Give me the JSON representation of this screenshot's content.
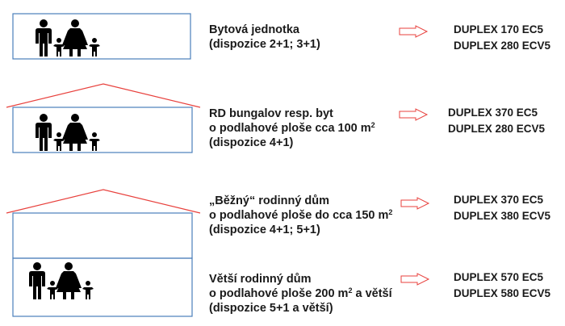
{
  "rows": [
    {
      "lines": [
        "Bytová jednotka",
        "(dispozice  2+1;  3+1)"
      ],
      "results": [
        "DUPLEX 170 EC5",
        "DUPLEX 280 ECV5"
      ]
    },
    {
      "lines": [
        "RD bungalov  resp. byt",
        "o podlahové  ploše cca 100 m",
        "(dispozice 4+1)"
      ],
      "sup": "2",
      "results": [
        "DUPLEX 370 EC5",
        "DUPLEX 280 ECV5"
      ]
    },
    {
      "lines": [
        "„Běžný“ rodinný dům",
        "o podlahové  ploše do cca 150 m",
        "(dispozice 4+1; 5+1)"
      ],
      "sup": "2",
      "results": [
        "DUPLEX 370 EC5",
        "DUPLEX 380 ECV5"
      ]
    },
    {
      "lines": [
        "Větší rodinný dům",
        "o podlahové  ploše 200 m",
        " a větší",
        "(dispozice 5+1 a větší)"
      ],
      "sup": "2",
      "results": [
        "DUPLEX 570 EC5",
        "DUPLEX 580 ECV5"
      ]
    }
  ],
  "colors": {
    "box": "#4a7ebb",
    "roof": "#e8403c",
    "arrow": "#e8403c",
    "figure": "#000000"
  },
  "icons": [
    "family-icon",
    "right-arrow-icon"
  ]
}
